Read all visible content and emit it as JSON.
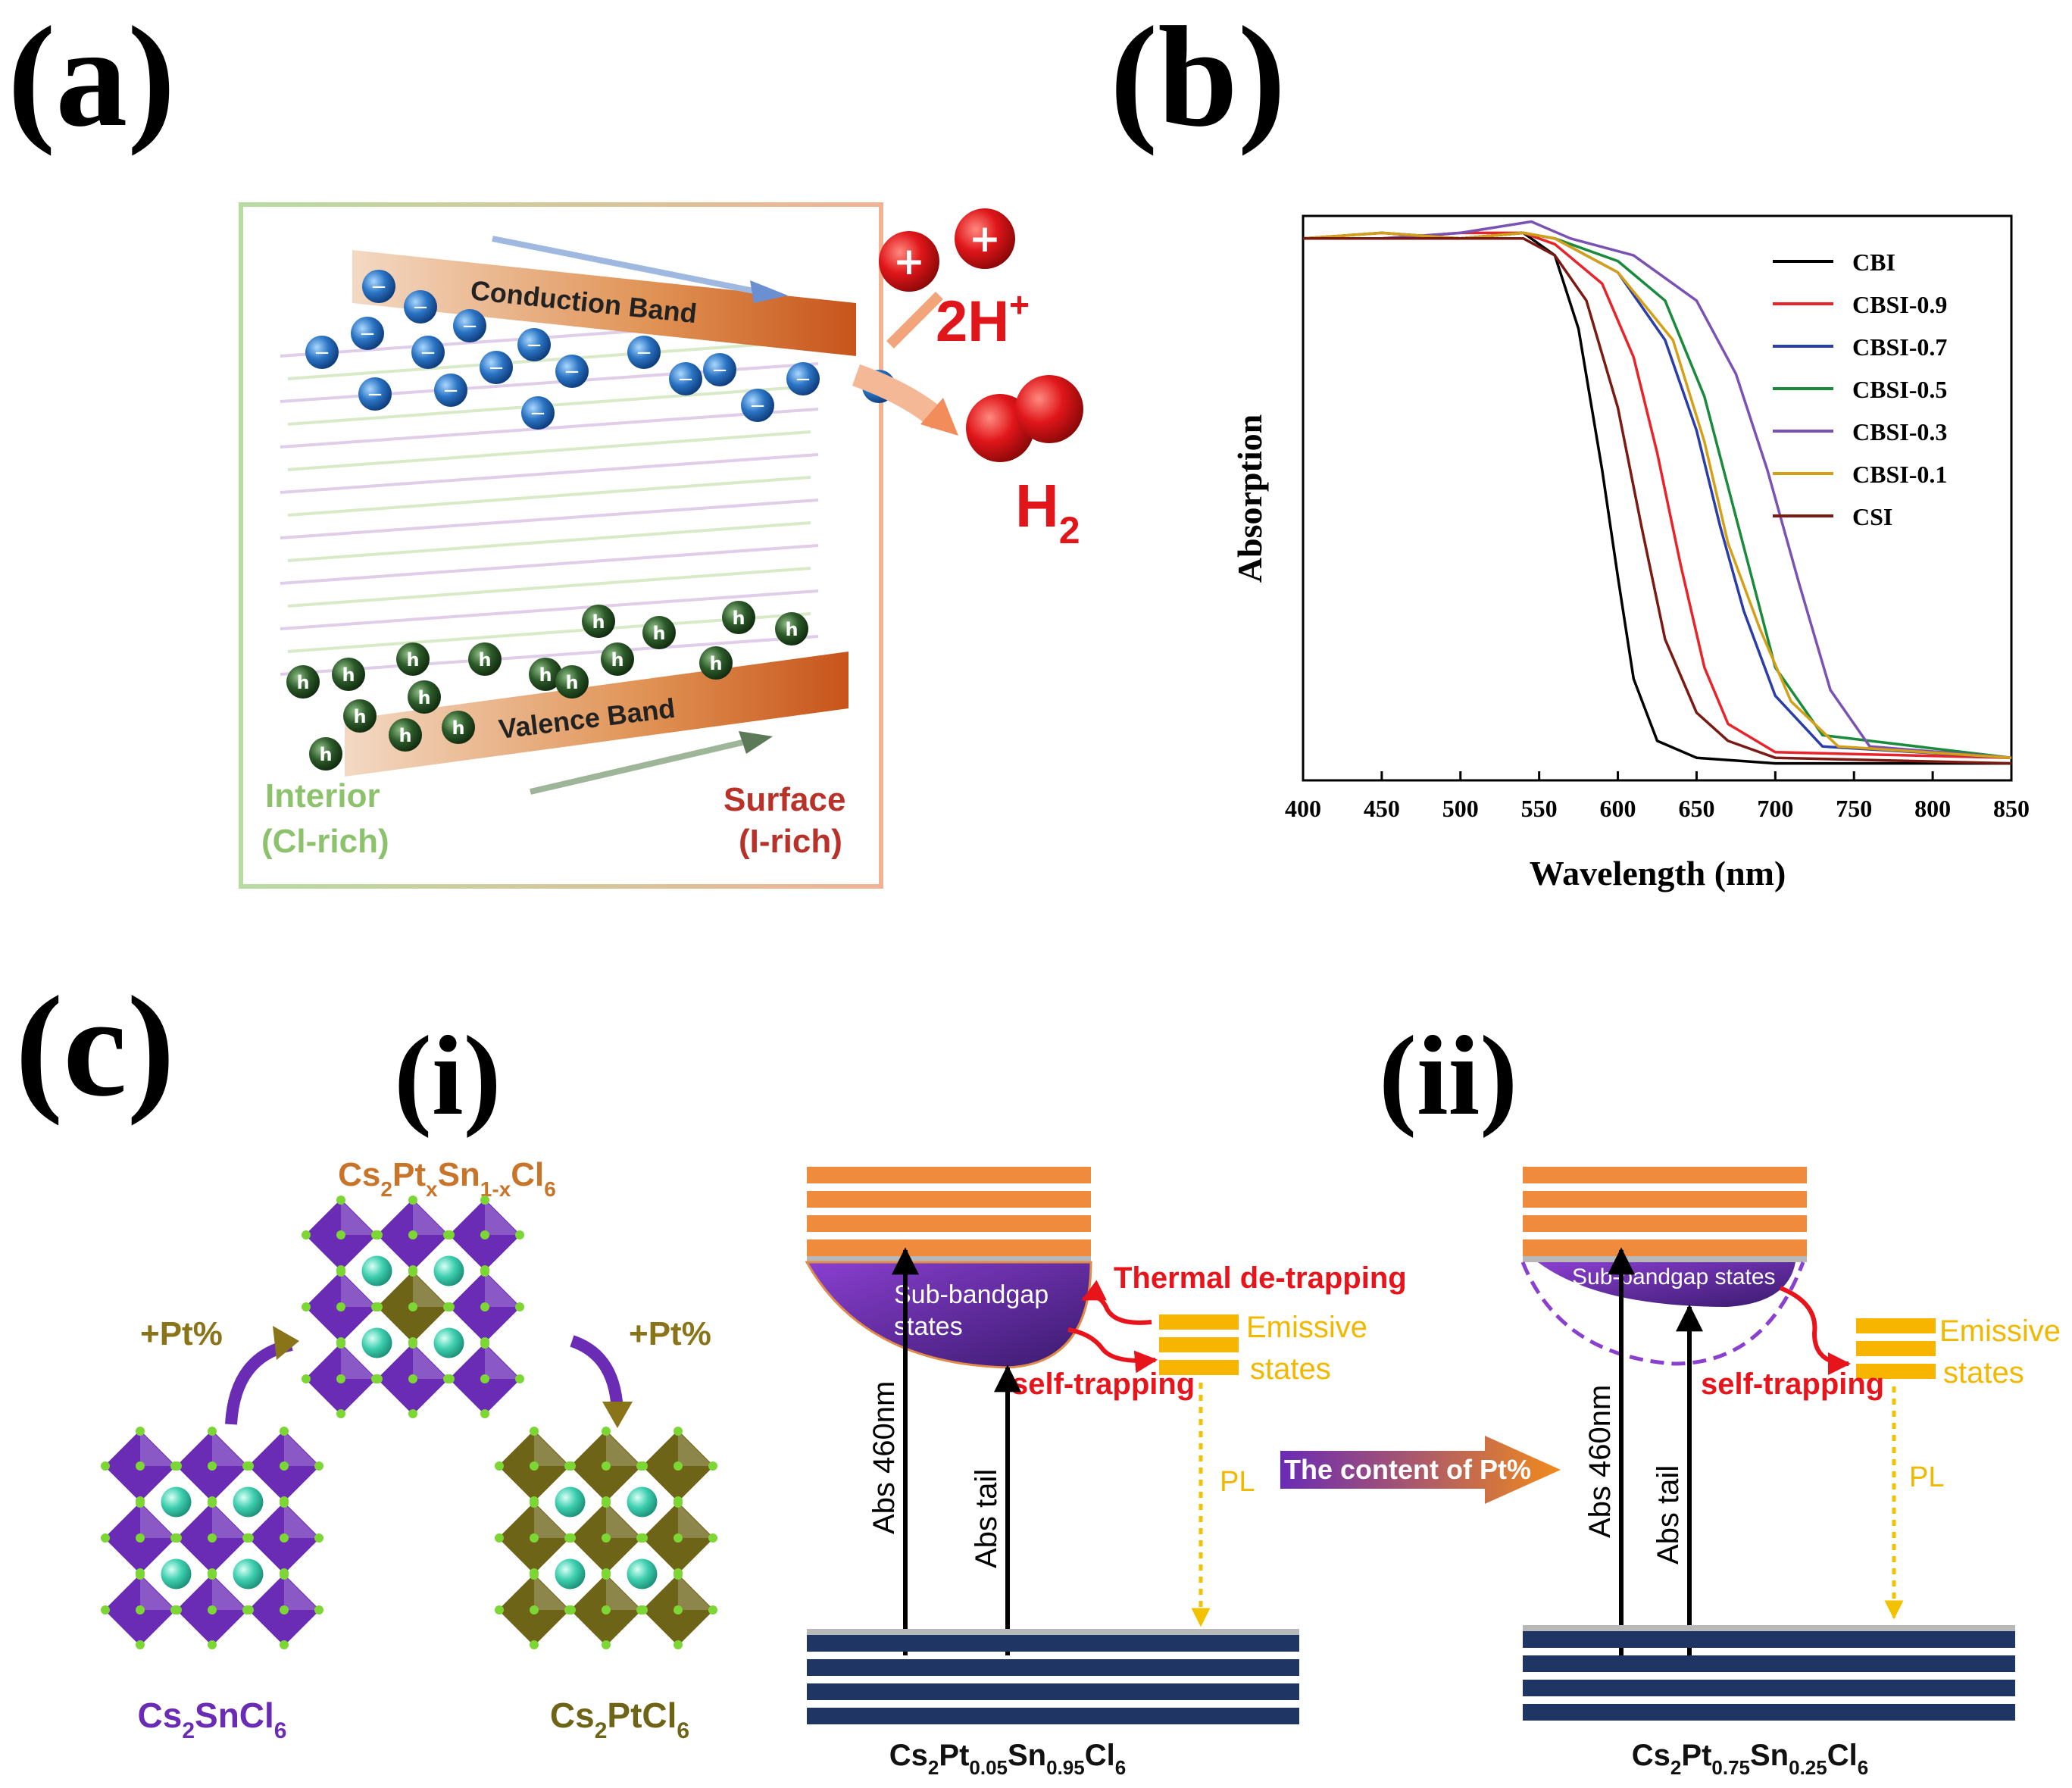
{
  "panel_labels": {
    "a": "(a)",
    "b": "(b)",
    "c": "(c)",
    "i": "(i)",
    "ii": "(ii)"
  },
  "panel_a": {
    "conduction_band": "Conduction Band",
    "valence_band": "Valence Band",
    "interior": "Interior",
    "interior_sub": "(Cl-rich)",
    "surface": "Surface",
    "surface_sub": "(I-rich)",
    "proton": "2H",
    "proton_sup": "+",
    "hydrogen": "H",
    "hydrogen_sub": "2",
    "electron_symbol": "−",
    "hole_symbol": "h",
    "plus_symbol": "+"
  },
  "chart_data": {
    "type": "line",
    "title": "",
    "xlabel": "Wavelength (nm)",
    "ylabel": "Absorption",
    "xlim": [
      400,
      850
    ],
    "ylim": [
      0,
      1
    ],
    "x_ticks": [
      400,
      450,
      500,
      550,
      600,
      650,
      700,
      750,
      800,
      850
    ],
    "legend_position": "top-right",
    "series": [
      {
        "name": "CBI",
        "color": "#000000",
        "x": [
          400,
          450,
          500,
          540,
          560,
          575,
          590,
          600,
          610,
          625,
          650,
          700,
          850
        ],
        "y": [
          0.96,
          0.97,
          0.96,
          0.97,
          0.93,
          0.8,
          0.55,
          0.36,
          0.18,
          0.07,
          0.04,
          0.03,
          0.03
        ]
      },
      {
        "name": "CBSI-0.9",
        "color": "#e8232a",
        "x": [
          400,
          450,
          500,
          540,
          560,
          590,
          610,
          625,
          640,
          655,
          670,
          700,
          850
        ],
        "y": [
          0.96,
          0.96,
          0.97,
          0.97,
          0.95,
          0.88,
          0.75,
          0.58,
          0.38,
          0.2,
          0.1,
          0.05,
          0.04
        ]
      },
      {
        "name": "CBSI-0.7",
        "color": "#2b3da8",
        "x": [
          400,
          450,
          500,
          540,
          560,
          600,
          630,
          650,
          665,
          680,
          700,
          730,
          850
        ],
        "y": [
          0.96,
          0.96,
          0.96,
          0.97,
          0.96,
          0.9,
          0.78,
          0.62,
          0.45,
          0.3,
          0.15,
          0.06,
          0.04
        ]
      },
      {
        "name": "CBSI-0.5",
        "color": "#1a8a3c",
        "x": [
          400,
          450,
          500,
          540,
          560,
          600,
          630,
          655,
          670,
          685,
          700,
          730,
          850
        ],
        "y": [
          0.96,
          0.96,
          0.96,
          0.97,
          0.96,
          0.92,
          0.85,
          0.68,
          0.52,
          0.36,
          0.2,
          0.08,
          0.04
        ]
      },
      {
        "name": "CBSI-0.3",
        "color": "#7a52b3",
        "x": [
          400,
          450,
          500,
          545,
          570,
          610,
          650,
          675,
          695,
          715,
          735,
          760,
          850
        ],
        "y": [
          0.96,
          0.96,
          0.97,
          0.99,
          0.96,
          0.93,
          0.85,
          0.72,
          0.55,
          0.35,
          0.16,
          0.06,
          0.04
        ]
      },
      {
        "name": "CBSI-0.1",
        "color": "#d4a017",
        "x": [
          400,
          450,
          500,
          540,
          560,
          600,
          635,
          655,
          670,
          690,
          710,
          740,
          850
        ],
        "y": [
          0.96,
          0.97,
          0.96,
          0.97,
          0.96,
          0.9,
          0.78,
          0.6,
          0.42,
          0.27,
          0.14,
          0.06,
          0.04
        ]
      },
      {
        "name": "CSI",
        "color": "#7b1a12",
        "x": [
          400,
          450,
          500,
          540,
          560,
          580,
          600,
          615,
          630,
          650,
          670,
          700,
          850
        ],
        "y": [
          0.96,
          0.96,
          0.96,
          0.96,
          0.93,
          0.85,
          0.66,
          0.45,
          0.25,
          0.12,
          0.07,
          0.04,
          0.03
        ]
      }
    ]
  },
  "panel_c_i": {
    "top_formula": {
      "base": "Cs",
      "s1": "2",
      "b2": "Pt",
      "s2": "x",
      "b3": "Sn",
      "s3": "1-x",
      "b4": "Cl",
      "s4": "6"
    },
    "left_formula": {
      "base": "Cs",
      "s1": "2",
      "b2": "SnCl",
      "s2": "6"
    },
    "right_formula": {
      "base": "Cs",
      "s1": "2",
      "b2": "PtCl",
      "s2": "6"
    },
    "left_arrow_label": "+Pt%",
    "right_arrow_label": "+Pt%",
    "colors": {
      "tin": "#6a2bb5",
      "platinum": "#6e6418",
      "cs": "#3fcfb0",
      "cl": "#7cd633"
    }
  },
  "panel_c_ii": {
    "left": {
      "sub_bandgap": "Sub-bandgap",
      "sub_bandgap_2": "states",
      "thermal": "Thermal de-trapping",
      "emissive": "Emissive",
      "emissive_2": "states",
      "self_trapping": "self-trapping",
      "abs_460": "Abs 460nm",
      "abs_tail": "Abs tail",
      "pl": "PL",
      "formula": {
        "base": "Cs",
        "s1": "2",
        "b2": "Pt",
        "s2": "0.05",
        "b3": "Sn",
        "s3": "0.95",
        "b4": "Cl",
        "s4": "6"
      }
    },
    "arrow_text": "The content of Pt%",
    "right": {
      "sub_bandgap": "Sub-bandgap states",
      "emissive": "Emissive",
      "emissive_2": "states",
      "self_trapping": "self-trapping",
      "abs_460": "Abs 460nm",
      "abs_tail": "Abs tail",
      "pl": "PL",
      "formula": {
        "base": "Cs",
        "s1": "2",
        "b2": "Pt",
        "s2": "0.75",
        "b3": "Sn",
        "s3": "0.25",
        "b4": "Cl",
        "s4": "6"
      }
    },
    "colors": {
      "cb": "#f08a3c",
      "vb": "#1f3563",
      "emissive": "#f7b500",
      "red": "#e8141b",
      "purple": "#6a2bb5"
    }
  }
}
